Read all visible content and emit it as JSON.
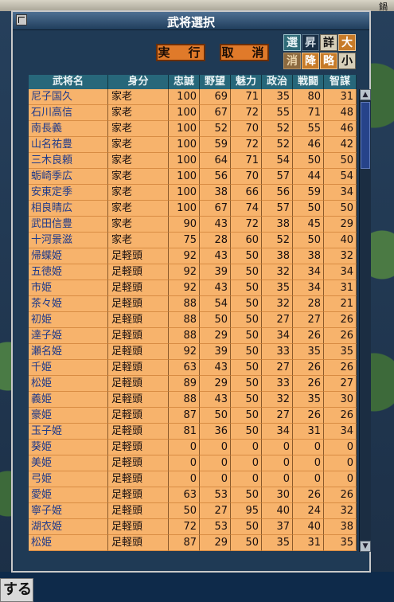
{
  "partial": {
    "top_right": "鍋",
    "bottom_left": "する"
  },
  "dialog": {
    "title": "武将選択",
    "execute_label": "実　行",
    "cancel_label": "取　消"
  },
  "modes": {
    "row1": [
      "選",
      "昇",
      "詳",
      "大"
    ],
    "row2": [
      "消",
      "降",
      "略",
      "小"
    ]
  },
  "table": {
    "headers": [
      "武将名",
      "身分",
      "忠誠",
      "野望",
      "魅力",
      "政治",
      "戦闘",
      "智謀"
    ],
    "rows": [
      [
        "尼子国久",
        "家老",
        "100",
        "69",
        "71",
        "35",
        "80",
        "31"
      ],
      [
        "石川高信",
        "家老",
        "100",
        "67",
        "72",
        "55",
        "71",
        "48"
      ],
      [
        "南長義",
        "家老",
        "100",
        "52",
        "70",
        "52",
        "55",
        "46"
      ],
      [
        "山名祐豊",
        "家老",
        "100",
        "59",
        "72",
        "52",
        "46",
        "42"
      ],
      [
        "三木良頼",
        "家老",
        "100",
        "64",
        "71",
        "54",
        "50",
        "50"
      ],
      [
        "蛎崎季広",
        "家老",
        "100",
        "56",
        "70",
        "57",
        "44",
        "54"
      ],
      [
        "安東定季",
        "家老",
        "100",
        "38",
        "66",
        "56",
        "59",
        "34"
      ],
      [
        "相良晴広",
        "家老",
        "100",
        "67",
        "74",
        "57",
        "50",
        "50"
      ],
      [
        "武田信豊",
        "家老",
        "90",
        "43",
        "72",
        "38",
        "45",
        "29"
      ],
      [
        "十河景滋",
        "家老",
        "75",
        "28",
        "60",
        "52",
        "50",
        "40"
      ],
      [
        "帰蝶姫",
        "足軽頭",
        "92",
        "43",
        "50",
        "38",
        "38",
        "32"
      ],
      [
        "五徳姫",
        "足軽頭",
        "92",
        "39",
        "50",
        "32",
        "34",
        "34"
      ],
      [
        "市姫",
        "足軽頭",
        "92",
        "43",
        "50",
        "35",
        "34",
        "31"
      ],
      [
        "茶々姫",
        "足軽頭",
        "88",
        "54",
        "50",
        "32",
        "28",
        "21"
      ],
      [
        "初姫",
        "足軽頭",
        "88",
        "50",
        "50",
        "27",
        "27",
        "26"
      ],
      [
        "達子姫",
        "足軽頭",
        "88",
        "29",
        "50",
        "34",
        "26",
        "26"
      ],
      [
        "瀬名姫",
        "足軽頭",
        "92",
        "39",
        "50",
        "33",
        "35",
        "35"
      ],
      [
        "千姫",
        "足軽頭",
        "63",
        "43",
        "50",
        "27",
        "26",
        "26"
      ],
      [
        "松姫",
        "足軽頭",
        "89",
        "29",
        "50",
        "33",
        "26",
        "27"
      ],
      [
        "義姫",
        "足軽頭",
        "88",
        "43",
        "50",
        "32",
        "35",
        "30"
      ],
      [
        "豪姫",
        "足軽頭",
        "87",
        "50",
        "50",
        "27",
        "26",
        "26"
      ],
      [
        "玉子姫",
        "足軽頭",
        "81",
        "36",
        "50",
        "34",
        "31",
        "34"
      ],
      [
        "葵姫",
        "足軽頭",
        "0",
        "0",
        "0",
        "0",
        "0",
        "0"
      ],
      [
        "美姫",
        "足軽頭",
        "0",
        "0",
        "0",
        "0",
        "0",
        "0"
      ],
      [
        "弓姫",
        "足軽頭",
        "0",
        "0",
        "0",
        "0",
        "0",
        "0"
      ],
      [
        "愛姫",
        "足軽頭",
        "63",
        "53",
        "50",
        "30",
        "26",
        "26"
      ],
      [
        "寧子姫",
        "足軽頭",
        "50",
        "27",
        "95",
        "40",
        "24",
        "32"
      ],
      [
        "湖衣姫",
        "足軽頭",
        "72",
        "53",
        "50",
        "37",
        "40",
        "38"
      ],
      [
        "松姫",
        "足軽頭",
        "87",
        "29",
        "50",
        "35",
        "31",
        "35"
      ]
    ]
  },
  "scrollbar": {
    "up_glyph": "▲",
    "down_glyph": "▼"
  },
  "colors": {
    "row_bg": "#f7b36c",
    "header_bg": "#27677a",
    "name_text": "#1f3a8a",
    "button_bg": "#e07a2a"
  }
}
